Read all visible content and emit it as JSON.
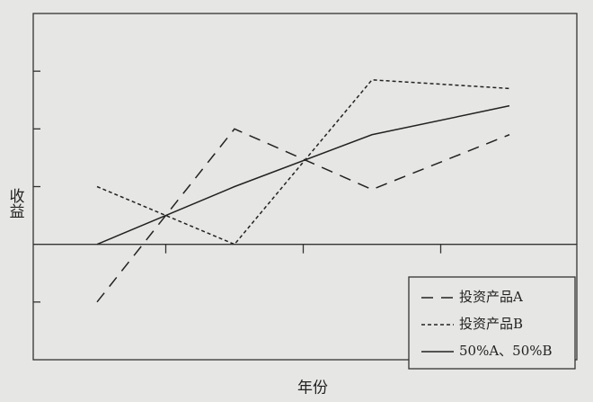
{
  "chart_data": {
    "type": "line",
    "y_label": "收益",
    "x_label": "年份",
    "categories": [
      null,
      null,
      null,
      null
    ],
    "series": [
      {
        "name": "投资产品A",
        "color": "#222222",
        "style": "dashed",
        "values": [
          -1,
          2,
          0.95,
          1.9
        ]
      },
      {
        "name": "投资产品B",
        "color": "#222222",
        "style": "dotted",
        "values": [
          1,
          0,
          2.85,
          2.7
        ]
      },
      {
        "name": "50%A、50%B",
        "color": "#222222",
        "style": "solid",
        "values": [
          0,
          1,
          1.9,
          2.4
        ]
      }
    ],
    "ylim": [
      -2,
      4
    ],
    "yticks": [
      -1,
      0,
      1,
      2,
      3
    ],
    "legend": "lower right"
  }
}
